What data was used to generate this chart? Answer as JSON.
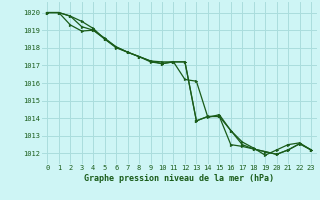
{
  "title": "Graphe pression niveau de la mer (hPa)",
  "background_color": "#cef5f5",
  "grid_color": "#aadddd",
  "line_color": "#1a5c1a",
  "xlim": [
    -0.5,
    23.5
  ],
  "ylim": [
    1011.4,
    1020.6
  ],
  "yticks": [
    1012,
    1013,
    1014,
    1015,
    1016,
    1017,
    1018,
    1019,
    1020
  ],
  "xticks": [
    0,
    1,
    2,
    3,
    4,
    5,
    6,
    7,
    8,
    9,
    10,
    11,
    12,
    13,
    14,
    15,
    16,
    17,
    18,
    19,
    20,
    21,
    22,
    23
  ],
  "series": [
    {
      "x": [
        0,
        1,
        2,
        3,
        4,
        5,
        6,
        7,
        8,
        9,
        10,
        11,
        12,
        13,
        14,
        15,
        16,
        17,
        18,
        19,
        20,
        21,
        22,
        23
      ],
      "y": [
        1020.0,
        1020.0,
        1019.8,
        1019.2,
        1019.0,
        1018.5,
        1018.0,
        1017.75,
        1017.5,
        1017.2,
        1017.1,
        1017.2,
        1017.2,
        1013.85,
        1014.1,
        1014.1,
        1012.5,
        1012.4,
        1012.25,
        1012.1,
        1011.95,
        1012.2,
        1012.55,
        1012.2
      ],
      "has_markers": true
    },
    {
      "x": [
        0,
        1,
        2,
        3,
        4,
        5,
        6,
        7,
        8,
        9,
        10,
        11,
        12,
        13,
        14,
        15,
        16,
        17,
        18,
        19,
        20,
        21,
        22,
        23
      ],
      "y": [
        1020.0,
        1020.0,
        1019.8,
        1019.5,
        1019.1,
        1018.5,
        1018.05,
        1017.75,
        1017.5,
        1017.25,
        1017.1,
        1017.2,
        1016.2,
        1016.1,
        1014.05,
        1014.2,
        1013.3,
        1012.65,
        1012.3,
        1011.9,
        1012.2,
        1012.5,
        1012.6,
        1012.2
      ],
      "has_markers": true
    },
    {
      "x": [
        0,
        1,
        2,
        3,
        4,
        5,
        6,
        7,
        8,
        9,
        10,
        11,
        12,
        13,
        14,
        15,
        16,
        17,
        18,
        19,
        20,
        21,
        22,
        23
      ],
      "y": [
        1020.0,
        1020.0,
        1019.3,
        1018.95,
        1019.0,
        1018.55,
        1018.05,
        1017.75,
        1017.5,
        1017.25,
        1017.2,
        1017.2,
        1017.2,
        1013.85,
        1014.1,
        1014.1,
        1013.3,
        1012.5,
        1012.25,
        1012.1,
        1011.95,
        1012.2,
        1012.55,
        1012.2
      ],
      "has_markers": true
    }
  ]
}
